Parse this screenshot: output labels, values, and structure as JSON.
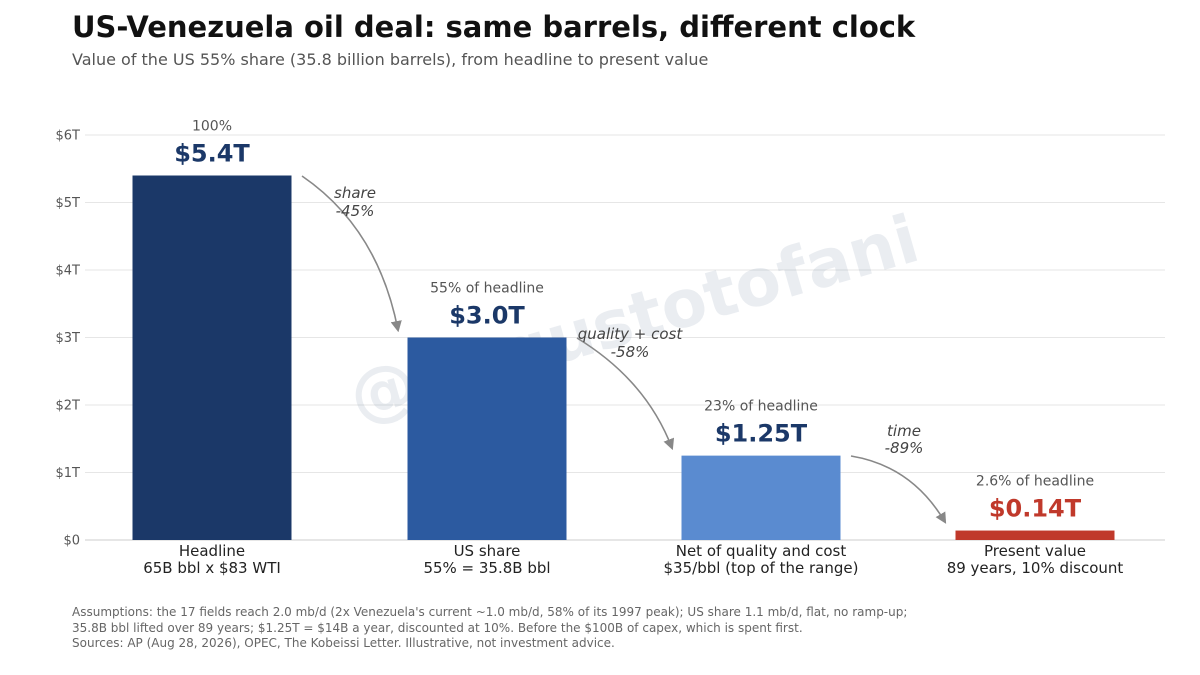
{
  "header": {
    "title": "US-Venezuela oil deal: same barrels, different clock",
    "subtitle": "Value of the US 55% share (35.8 billion barrels), from headline to present value"
  },
  "watermark": "@augustotofani",
  "chart_data": {
    "type": "bar",
    "categories": [
      {
        "line1": "Headline",
        "line2": "65B bbl x $83 WTI"
      },
      {
        "line1": "US share",
        "line2": "55% = 35.8B bbl"
      },
      {
        "line1": "Net of quality and cost",
        "line2": "$35/bbl (top of the range)"
      },
      {
        "line1": "Present value",
        "line2": "89 years, 10% discount"
      }
    ],
    "values": [
      5.4,
      3.0,
      1.25,
      0.14
    ],
    "value_labels": [
      "$5.4T",
      "$3.0T",
      "$1.25T",
      "$0.14T"
    ],
    "share_labels": [
      "100%",
      "55% of headline",
      "23% of headline",
      "2.6% of headline"
    ],
    "bar_colors": [
      "#1b3868",
      "#2c5aa0",
      "#5a8bd0",
      "#c0392b"
    ],
    "value_label_colors": [
      "#1b3868",
      "#1b3868",
      "#1b3868",
      "#c0392b"
    ],
    "ylim": [
      0,
      6
    ],
    "yticks": [
      0,
      1,
      2,
      3,
      4,
      5,
      6
    ],
    "ytick_labels": [
      "$0",
      "$1T",
      "$2T",
      "$3T",
      "$4T",
      "$5T",
      "$6T"
    ],
    "grid": true,
    "transitions": [
      {
        "label": "share",
        "change": "-45%"
      },
      {
        "label": "quality + cost",
        "change": "-58%"
      },
      {
        "label": "time",
        "change": "-89%"
      }
    ]
  },
  "footnotes": [
    "Assumptions: the 17 fields reach 2.0 mb/d (2x Venezuela's current ~1.0 mb/d, 58% of its 1997 peak); US share 1.1 mb/d, flat, no ramp-up;",
    "35.8B bbl lifted over 89 years; $1.25T = $14B a year, discounted at 10%. Before the $100B of capex, which is spent first.",
    "Sources: AP (Aug 28, 2026), OPEC, The Kobeissi Letter. Illustrative, not investment advice."
  ],
  "colors": {
    "grid": "#e6e6e6",
    "axis_text": "#555555",
    "arrow": "#888888",
    "transition_text": "#444444"
  }
}
